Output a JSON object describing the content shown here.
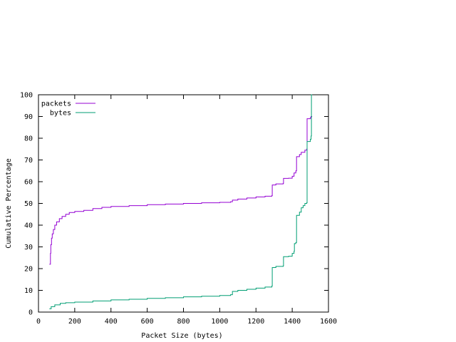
{
  "chart_data": {
    "type": "line",
    "title": "",
    "xlabel": "Packet Size (bytes)",
    "ylabel": "Cumulative Percentage",
    "xlim": [
      0,
      1600
    ],
    "ylim": [
      0,
      100
    ],
    "xticks": [
      0,
      200,
      400,
      600,
      800,
      1000,
      1200,
      1400,
      1600
    ],
    "yticks": [
      0,
      10,
      20,
      30,
      40,
      50,
      60,
      70,
      80,
      90,
      100
    ],
    "grid": false,
    "legend_position": "top-left",
    "series": [
      {
        "name": "packets",
        "color": "#9400d3",
        "step": true,
        "points": [
          [
            60,
            22
          ],
          [
            64,
            22
          ],
          [
            66,
            27
          ],
          [
            68,
            31
          ],
          [
            72,
            34
          ],
          [
            76,
            36
          ],
          [
            82,
            38
          ],
          [
            90,
            40
          ],
          [
            100,
            41.5
          ],
          [
            115,
            43
          ],
          [
            130,
            44
          ],
          [
            150,
            45
          ],
          [
            170,
            45.8
          ],
          [
            200,
            46.3
          ],
          [
            250,
            46.8
          ],
          [
            300,
            47.6
          ],
          [
            350,
            48.2
          ],
          [
            400,
            48.6
          ],
          [
            500,
            49
          ],
          [
            600,
            49.4
          ],
          [
            700,
            49.7
          ],
          [
            800,
            50
          ],
          [
            900,
            50.3
          ],
          [
            1000,
            50.5
          ],
          [
            1060,
            50.8
          ],
          [
            1070,
            51.5
          ],
          [
            1100,
            52
          ],
          [
            1150,
            52.5
          ],
          [
            1200,
            53
          ],
          [
            1250,
            53.3
          ],
          [
            1288,
            53.6
          ],
          [
            1290,
            58.5
          ],
          [
            1310,
            59
          ],
          [
            1350,
            59.2
          ],
          [
            1352,
            61.5
          ],
          [
            1380,
            61.6
          ],
          [
            1400,
            62.5
          ],
          [
            1410,
            64
          ],
          [
            1420,
            65
          ],
          [
            1424,
            71.5
          ],
          [
            1440,
            72.5
          ],
          [
            1450,
            73.5
          ],
          [
            1470,
            74.5
          ],
          [
            1480,
            75
          ],
          [
            1482,
            89
          ],
          [
            1500,
            89.5
          ],
          [
            1504,
            90
          ],
          [
            1510,
            90
          ]
        ]
      },
      {
        "name": "bytes",
        "color": "#009e73",
        "step": true,
        "points": [
          [
            60,
            1.5
          ],
          [
            70,
            2.5
          ],
          [
            90,
            3.3
          ],
          [
            120,
            4
          ],
          [
            150,
            4.3
          ],
          [
            200,
            4.6
          ],
          [
            300,
            5.1
          ],
          [
            400,
            5.6
          ],
          [
            500,
            5.9
          ],
          [
            600,
            6.3
          ],
          [
            700,
            6.6
          ],
          [
            800,
            7
          ],
          [
            900,
            7.3
          ],
          [
            1000,
            7.6
          ],
          [
            1060,
            8
          ],
          [
            1070,
            9.5
          ],
          [
            1100,
            10
          ],
          [
            1150,
            10.5
          ],
          [
            1200,
            11
          ],
          [
            1250,
            11.5
          ],
          [
            1288,
            12
          ],
          [
            1290,
            20.5
          ],
          [
            1310,
            21
          ],
          [
            1350,
            21.2
          ],
          [
            1352,
            25.5
          ],
          [
            1380,
            25.7
          ],
          [
            1400,
            27
          ],
          [
            1410,
            28
          ],
          [
            1412,
            31.5
          ],
          [
            1420,
            32
          ],
          [
            1424,
            44.5
          ],
          [
            1440,
            46
          ],
          [
            1450,
            48
          ],
          [
            1460,
            49
          ],
          [
            1470,
            50
          ],
          [
            1480,
            50.3
          ],
          [
            1482,
            78.5
          ],
          [
            1500,
            79.5
          ],
          [
            1504,
            81
          ],
          [
            1506,
            100
          ],
          [
            1510,
            100
          ]
        ]
      }
    ]
  }
}
